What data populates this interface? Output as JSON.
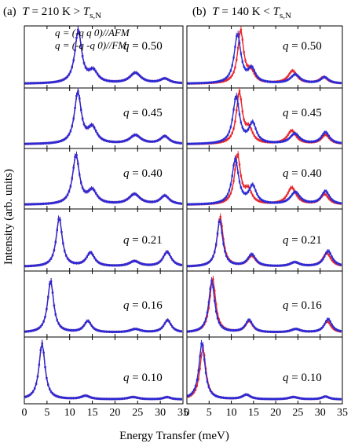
{
  "figure": {
    "ylabel": "Intensity (arb. units)",
    "xlabel": "Energy Transfer (meV)",
    "colors": {
      "afm": "#e8262b",
      "fm": "#2a2ad6",
      "frame": "#000000"
    },
    "columns": [
      {
        "tag": "(a)",
        "T": "T",
        "eq": " = 210 K  > ",
        "Ts": "T",
        "sub": "s,N"
      },
      {
        "tag": "(b)",
        "T": "T",
        "eq": " = 140 K < ",
        "Ts": "T",
        "sub": "s,N"
      }
    ],
    "legend": {
      "afm": "q = (-q q 0)//AFM",
      "fm": "q = (-q -q 0)//FM"
    },
    "q_labels": [
      "q = 0.50",
      "q = 0.45",
      "q = 0.40",
      "q = 0.21",
      "q = 0.16",
      "q = 0.10"
    ]
  },
  "chart_data": {
    "type": "line",
    "x_range": [
      0,
      35
    ],
    "x_ticks": [
      0,
      5,
      10,
      15,
      20,
      25,
      30,
      35
    ],
    "xlabel": "Energy Transfer (meV)",
    "ylabel": "Intensity (arb. units)",
    "grid": false,
    "legend_position": "top-left",
    "series_names": [
      "q = (-q q 0)//AFM",
      "q = (-q -q 0)//FM"
    ],
    "panels": [
      {
        "column": "a",
        "q": 0.5,
        "peaks": {
          "afm": [
            [
              11.9,
              1.0,
              0.9
            ],
            [
              15.2,
              0.22,
              1.2
            ],
            [
              24.5,
              0.2,
              1.5
            ],
            [
              31.0,
              0.09,
              1.3
            ]
          ],
          "fm": [
            [
              11.9,
              1.0,
              0.9
            ],
            [
              15.2,
              0.22,
              1.2
            ],
            [
              24.5,
              0.2,
              1.5
            ],
            [
              31.0,
              0.09,
              1.3
            ]
          ]
        }
      },
      {
        "column": "a",
        "q": 0.45,
        "peaks": {
          "afm": [
            [
              11.8,
              1.0,
              0.9
            ],
            [
              15.0,
              0.3,
              1.2
            ],
            [
              24.5,
              0.17,
              1.5
            ],
            [
              31.0,
              0.15,
              1.2
            ]
          ],
          "fm": [
            [
              11.8,
              1.0,
              0.9
            ],
            [
              15.0,
              0.3,
              1.2
            ],
            [
              24.5,
              0.17,
              1.5
            ],
            [
              31.0,
              0.15,
              1.2
            ]
          ]
        }
      },
      {
        "column": "a",
        "q": 0.4,
        "peaks": {
          "afm": [
            [
              11.4,
              0.96,
              0.9
            ],
            [
              15.0,
              0.26,
              1.2
            ],
            [
              24.3,
              0.2,
              1.5
            ],
            [
              31.0,
              0.17,
              1.2
            ]
          ],
          "fm": [
            [
              11.4,
              0.96,
              0.9
            ],
            [
              15.0,
              0.26,
              1.2
            ],
            [
              24.3,
              0.2,
              1.5
            ],
            [
              31.0,
              0.17,
              1.2
            ]
          ]
        }
      },
      {
        "column": "a",
        "q": 0.21,
        "peaks": {
          "afm": [
            [
              7.7,
              0.93,
              0.8
            ],
            [
              14.6,
              0.26,
              1.1
            ],
            [
              24.3,
              0.1,
              1.4
            ],
            [
              31.5,
              0.28,
              1.1
            ]
          ],
          "fm": [
            [
              7.7,
              0.93,
              0.8
            ],
            [
              14.6,
              0.26,
              1.1
            ],
            [
              24.3,
              0.1,
              1.4
            ],
            [
              31.5,
              0.28,
              1.1
            ]
          ]
        }
      },
      {
        "column": "a",
        "q": 0.16,
        "peaks": {
          "afm": [
            [
              5.8,
              0.92,
              0.8
            ],
            [
              14.0,
              0.2,
              1.0
            ],
            [
              24.5,
              0.06,
              1.4
            ],
            [
              31.6,
              0.22,
              1.0
            ]
          ],
          "fm": [
            [
              5.8,
              0.92,
              0.8
            ],
            [
              14.0,
              0.2,
              1.0
            ],
            [
              24.5,
              0.06,
              1.4
            ],
            [
              31.6,
              0.22,
              1.0
            ]
          ]
        }
      },
      {
        "column": "a",
        "q": 0.1,
        "peaks": {
          "afm": [
            [
              3.9,
              0.98,
              0.8
            ],
            [
              13.5,
              0.06,
              1.2
            ],
            [
              24.0,
              0.04,
              1.4
            ],
            [
              31.5,
              0.04,
              1.0
            ]
          ],
          "fm": [
            [
              3.9,
              0.98,
              0.8
            ],
            [
              13.5,
              0.06,
              1.2
            ],
            [
              24.0,
              0.04,
              1.4
            ],
            [
              31.5,
              0.04,
              1.0
            ]
          ]
        }
      },
      {
        "column": "b",
        "q": 0.5,
        "peaks": {
          "afm": [
            [
              12.1,
              1.0,
              0.8
            ],
            [
              14.4,
              0.2,
              1.0
            ],
            [
              23.8,
              0.24,
              1.2
            ],
            [
              30.8,
              0.12,
              1.1
            ]
          ],
          "fm": [
            [
              11.4,
              0.93,
              0.9
            ],
            [
              14.6,
              0.26,
              1.0
            ],
            [
              24.4,
              0.17,
              1.3
            ],
            [
              31.0,
              0.12,
              1.1
            ]
          ]
        }
      },
      {
        "column": "b",
        "q": 0.45,
        "peaks": {
          "afm": [
            [
              11.8,
              1.0,
              0.8
            ],
            [
              14.0,
              0.26,
              1.0
            ],
            [
              23.6,
              0.26,
              1.2
            ],
            [
              31.2,
              0.18,
              1.1
            ]
          ],
          "fm": [
            [
              11.1,
              0.92,
              0.9
            ],
            [
              14.8,
              0.39,
              1.0
            ],
            [
              24.3,
              0.2,
              1.3
            ],
            [
              31.2,
              0.23,
              1.1
            ]
          ]
        }
      },
      {
        "column": "b",
        "q": 0.4,
        "peaks": {
          "afm": [
            [
              11.4,
              0.96,
              0.8
            ],
            [
              13.8,
              0.26,
              1.0
            ],
            [
              23.6,
              0.33,
              1.2
            ],
            [
              31.0,
              0.2,
              1.1
            ]
          ],
          "fm": [
            [
              10.9,
              0.88,
              0.9
            ],
            [
              14.8,
              0.35,
              1.0
            ],
            [
              24.4,
              0.24,
              1.3
            ],
            [
              31.2,
              0.26,
              1.1
            ]
          ]
        }
      },
      {
        "column": "b",
        "q": 0.21,
        "peaks": {
          "afm": [
            [
              7.5,
              0.95,
              0.8
            ],
            [
              14.6,
              0.2,
              1.1
            ],
            [
              24.3,
              0.08,
              1.3
            ],
            [
              31.5,
              0.26,
              1.1
            ]
          ],
          "fm": [
            [
              7.4,
              0.88,
              0.8
            ],
            [
              14.6,
              0.23,
              1.1
            ],
            [
              24.3,
              0.08,
              1.3
            ],
            [
              31.8,
              0.3,
              1.1
            ]
          ]
        }
      },
      {
        "column": "b",
        "q": 0.16,
        "peaks": {
          "afm": [
            [
              5.8,
              0.96,
              0.8
            ],
            [
              14.0,
              0.2,
              1.0
            ],
            [
              24.5,
              0.06,
              1.3
            ],
            [
              31.6,
              0.2,
              1.0
            ]
          ],
          "fm": [
            [
              5.6,
              0.92,
              0.8
            ],
            [
              14.0,
              0.22,
              1.0
            ],
            [
              24.5,
              0.06,
              1.3
            ],
            [
              31.8,
              0.24,
              1.0
            ]
          ]
        }
      },
      {
        "column": "b",
        "q": 0.1,
        "peaks": {
          "afm": [
            [
              3.6,
              0.9,
              0.8
            ],
            [
              13.4,
              0.08,
              1.1
            ],
            [
              24.0,
              0.04,
              1.3
            ],
            [
              31.2,
              0.05,
              1.0
            ]
          ],
          "fm": [
            [
              3.4,
              1.0,
              0.8
            ],
            [
              13.4,
              0.08,
              1.1
            ],
            [
              24.0,
              0.04,
              1.3
            ],
            [
              31.2,
              0.05,
              1.0
            ]
          ]
        }
      }
    ]
  }
}
